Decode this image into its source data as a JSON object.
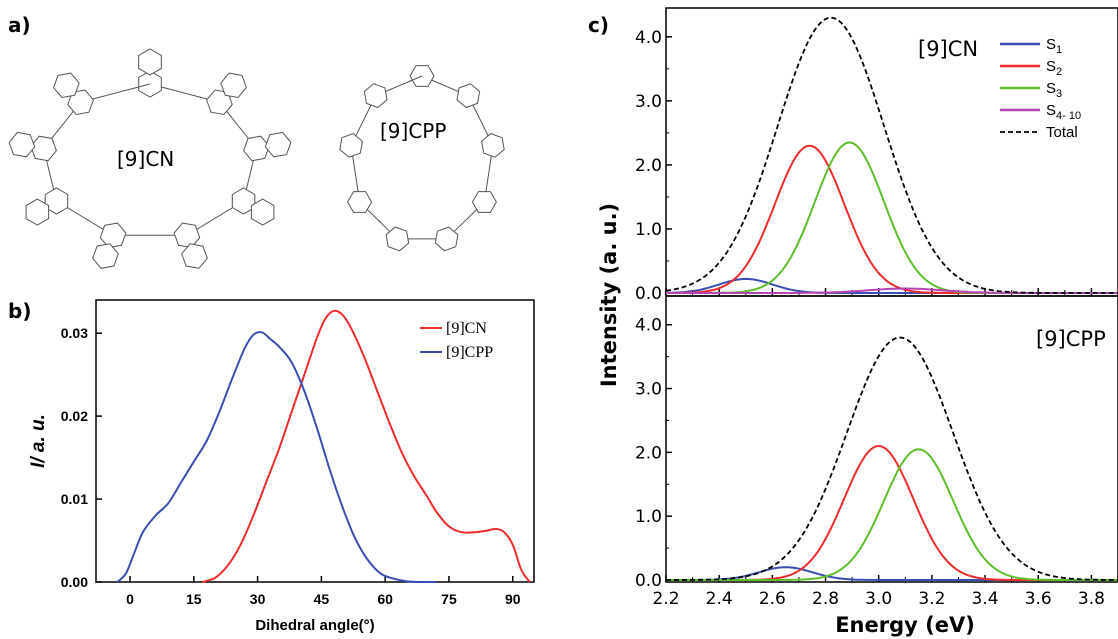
{
  "panel_labels": {
    "a": "a)",
    "b": "b)",
    "c": "c)"
  },
  "panel_a": {
    "molecules": [
      {
        "label": "[9]CN",
        "rings": 9
      },
      {
        "label": "[9]CPP",
        "rings": 9
      }
    ]
  },
  "chart_data": [
    {
      "id": "panel-b",
      "type": "line",
      "xlabel": "Dihedral angle(°)",
      "ylabel": "I/ a. u.",
      "xlim": [
        -8,
        95
      ],
      "ylim": [
        0,
        0.034
      ],
      "x_ticks": [
        0,
        15,
        30,
        45,
        60,
        75,
        90
      ],
      "y_ticks": [
        0.0,
        0.01,
        0.02,
        0.03
      ],
      "y_tick_labels": [
        "0.00",
        "0.01",
        "0.02",
        "0.03"
      ],
      "grid": false,
      "legend_position": "top-right",
      "series": [
        {
          "name": "[9]CN",
          "color": "#ee2c2c",
          "x": [
            17,
            20,
            23,
            26,
            29,
            32,
            35,
            38,
            41,
            44,
            46,
            48,
            50,
            52,
            55,
            58,
            61,
            64,
            67,
            70,
            72,
            75,
            78,
            81,
            84,
            86,
            88,
            90,
            92,
            94
          ],
          "y": [
            0.0,
            0.0005,
            0.002,
            0.0045,
            0.008,
            0.012,
            0.016,
            0.0205,
            0.025,
            0.0295,
            0.0318,
            0.0327,
            0.0322,
            0.0306,
            0.0272,
            0.0232,
            0.0192,
            0.0155,
            0.0126,
            0.0102,
            0.0085,
            0.0067,
            0.006,
            0.006,
            0.0062,
            0.0064,
            0.006,
            0.0045,
            0.0015,
            0.0
          ]
        },
        {
          "name": "[9]CPP",
          "color": "#3a4fb3",
          "x": [
            -3,
            -1,
            1,
            3,
            6,
            9,
            12,
            15,
            18,
            21,
            24,
            27,
            29,
            31,
            33,
            35,
            38,
            41,
            44,
            47,
            50,
            53,
            56,
            59,
            62,
            65,
            68,
            72
          ],
          "y": [
            0.0,
            0.001,
            0.0035,
            0.006,
            0.008,
            0.0095,
            0.012,
            0.0145,
            0.017,
            0.0205,
            0.0245,
            0.0282,
            0.0298,
            0.0301,
            0.0293,
            0.0284,
            0.0265,
            0.023,
            0.0185,
            0.0135,
            0.009,
            0.0052,
            0.0026,
            0.001,
            0.0004,
            0.0001,
            0.0,
            0.0
          ]
        }
      ]
    },
    {
      "id": "panel-c-top",
      "type": "line",
      "inner_label": "[9]CN",
      "xlim": [
        2.2,
        3.9
      ],
      "ylim": [
        0,
        4.45
      ],
      "y_ticks": [
        0.0,
        1.0,
        2.0,
        3.0,
        4.0
      ],
      "y_tick_labels": [
        "0.0",
        "1.0",
        "2.0",
        "3.0",
        "4.0"
      ],
      "legend_position": "top-right",
      "legend": [
        {
          "label": "S",
          "sub": "1",
          "color": "#3a4fb3",
          "style": "solid"
        },
        {
          "label": "S",
          "sub": "2",
          "color": "#ee2c2c",
          "style": "solid"
        },
        {
          "label": "S",
          "sub": "3",
          "color": "#5cbf2a",
          "style": "solid"
        },
        {
          "label": "S",
          "sub": "4- 10",
          "color": "#b544b5",
          "style": "solid"
        },
        {
          "label": "Total",
          "sub": "",
          "color": "#000000",
          "style": "dashed"
        }
      ],
      "series": [
        {
          "name": "S1",
          "color": "#3a4fb3",
          "peak_x": 2.5,
          "peak_y": 0.22,
          "width": 0.1
        },
        {
          "name": "S2",
          "color": "#ee2c2c",
          "peak_x": 2.74,
          "peak_y": 2.3,
          "width": 0.13
        },
        {
          "name": "S3",
          "color": "#5cbf2a",
          "peak_x": 2.89,
          "peak_y": 2.35,
          "width": 0.13
        },
        {
          "name": "S4-10",
          "color": "#b544b5",
          "peak_x": 3.1,
          "peak_y": 0.07,
          "width": 0.14
        },
        {
          "name": "Total",
          "color": "#000000",
          "dashed": true,
          "peak_x": 2.82,
          "peak_y": 4.3,
          "width": 0.2
        }
      ]
    },
    {
      "id": "panel-c-bottom",
      "type": "line",
      "inner_label": "[9]CPP",
      "xlabel": "Energy (eV)",
      "ylabel": "Intensity (a. u.)",
      "xlim": [
        2.2,
        3.9
      ],
      "ylim": [
        0,
        4.45
      ],
      "x_ticks": [
        2.2,
        2.4,
        2.6,
        2.8,
        3.0,
        3.2,
        3.4,
        3.6,
        3.8
      ],
      "x_tick_labels": [
        "2.2",
        "2.4",
        "2.6",
        "2.8",
        "3.0",
        "3.2",
        "3.4",
        "3.6",
        "3.8"
      ],
      "y_ticks": [
        0.0,
        1.0,
        2.0,
        3.0,
        4.0
      ],
      "y_tick_labels": [
        "0.0",
        "1.0",
        "2.0",
        "3.0",
        "4.0"
      ],
      "series": [
        {
          "name": "S1",
          "color": "#3a4fb3",
          "peak_x": 2.65,
          "peak_y": 0.2,
          "width": 0.1
        },
        {
          "name": "S2",
          "color": "#ee2c2c",
          "peak_x": 3.0,
          "peak_y": 2.1,
          "width": 0.13
        },
        {
          "name": "S3",
          "color": "#5cbf2a",
          "peak_x": 3.15,
          "peak_y": 2.05,
          "width": 0.13
        },
        {
          "name": "Total",
          "color": "#000000",
          "dashed": true,
          "peak_x": 3.08,
          "peak_y": 3.8,
          "width": 0.2
        }
      ]
    }
  ]
}
